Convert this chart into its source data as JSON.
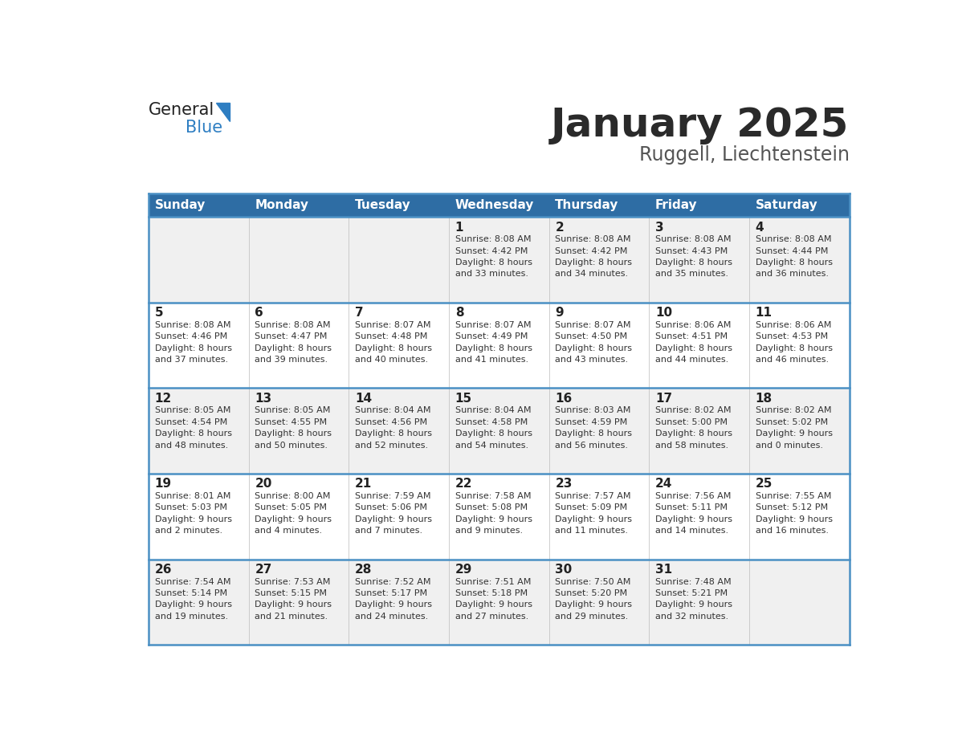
{
  "title": "January 2025",
  "subtitle": "Ruggell, Liechtenstein",
  "header_bg": "#2E6DA4",
  "header_text": "#FFFFFF",
  "cell_bg_light": "#F0F0F0",
  "cell_bg_white": "#FFFFFF",
  "border_color": "#2E7EC2",
  "row_line_color": "#4A90C4",
  "text_color": "#333333",
  "days_of_week": [
    "Sunday",
    "Monday",
    "Tuesday",
    "Wednesday",
    "Thursday",
    "Friday",
    "Saturday"
  ],
  "calendar_data": [
    [
      {
        "day": "",
        "info": ""
      },
      {
        "day": "",
        "info": ""
      },
      {
        "day": "",
        "info": ""
      },
      {
        "day": "1",
        "info": "Sunrise: 8:08 AM\nSunset: 4:42 PM\nDaylight: 8 hours\nand 33 minutes."
      },
      {
        "day": "2",
        "info": "Sunrise: 8:08 AM\nSunset: 4:42 PM\nDaylight: 8 hours\nand 34 minutes."
      },
      {
        "day": "3",
        "info": "Sunrise: 8:08 AM\nSunset: 4:43 PM\nDaylight: 8 hours\nand 35 minutes."
      },
      {
        "day": "4",
        "info": "Sunrise: 8:08 AM\nSunset: 4:44 PM\nDaylight: 8 hours\nand 36 minutes."
      }
    ],
    [
      {
        "day": "5",
        "info": "Sunrise: 8:08 AM\nSunset: 4:46 PM\nDaylight: 8 hours\nand 37 minutes."
      },
      {
        "day": "6",
        "info": "Sunrise: 8:08 AM\nSunset: 4:47 PM\nDaylight: 8 hours\nand 39 minutes."
      },
      {
        "day": "7",
        "info": "Sunrise: 8:07 AM\nSunset: 4:48 PM\nDaylight: 8 hours\nand 40 minutes."
      },
      {
        "day": "8",
        "info": "Sunrise: 8:07 AM\nSunset: 4:49 PM\nDaylight: 8 hours\nand 41 minutes."
      },
      {
        "day": "9",
        "info": "Sunrise: 8:07 AM\nSunset: 4:50 PM\nDaylight: 8 hours\nand 43 minutes."
      },
      {
        "day": "10",
        "info": "Sunrise: 8:06 AM\nSunset: 4:51 PM\nDaylight: 8 hours\nand 44 minutes."
      },
      {
        "day": "11",
        "info": "Sunrise: 8:06 AM\nSunset: 4:53 PM\nDaylight: 8 hours\nand 46 minutes."
      }
    ],
    [
      {
        "day": "12",
        "info": "Sunrise: 8:05 AM\nSunset: 4:54 PM\nDaylight: 8 hours\nand 48 minutes."
      },
      {
        "day": "13",
        "info": "Sunrise: 8:05 AM\nSunset: 4:55 PM\nDaylight: 8 hours\nand 50 minutes."
      },
      {
        "day": "14",
        "info": "Sunrise: 8:04 AM\nSunset: 4:56 PM\nDaylight: 8 hours\nand 52 minutes."
      },
      {
        "day": "15",
        "info": "Sunrise: 8:04 AM\nSunset: 4:58 PM\nDaylight: 8 hours\nand 54 minutes."
      },
      {
        "day": "16",
        "info": "Sunrise: 8:03 AM\nSunset: 4:59 PM\nDaylight: 8 hours\nand 56 minutes."
      },
      {
        "day": "17",
        "info": "Sunrise: 8:02 AM\nSunset: 5:00 PM\nDaylight: 8 hours\nand 58 minutes."
      },
      {
        "day": "18",
        "info": "Sunrise: 8:02 AM\nSunset: 5:02 PM\nDaylight: 9 hours\nand 0 minutes."
      }
    ],
    [
      {
        "day": "19",
        "info": "Sunrise: 8:01 AM\nSunset: 5:03 PM\nDaylight: 9 hours\nand 2 minutes."
      },
      {
        "day": "20",
        "info": "Sunrise: 8:00 AM\nSunset: 5:05 PM\nDaylight: 9 hours\nand 4 minutes."
      },
      {
        "day": "21",
        "info": "Sunrise: 7:59 AM\nSunset: 5:06 PM\nDaylight: 9 hours\nand 7 minutes."
      },
      {
        "day": "22",
        "info": "Sunrise: 7:58 AM\nSunset: 5:08 PM\nDaylight: 9 hours\nand 9 minutes."
      },
      {
        "day": "23",
        "info": "Sunrise: 7:57 AM\nSunset: 5:09 PM\nDaylight: 9 hours\nand 11 minutes."
      },
      {
        "day": "24",
        "info": "Sunrise: 7:56 AM\nSunset: 5:11 PM\nDaylight: 9 hours\nand 14 minutes."
      },
      {
        "day": "25",
        "info": "Sunrise: 7:55 AM\nSunset: 5:12 PM\nDaylight: 9 hours\nand 16 minutes."
      }
    ],
    [
      {
        "day": "26",
        "info": "Sunrise: 7:54 AM\nSunset: 5:14 PM\nDaylight: 9 hours\nand 19 minutes."
      },
      {
        "day": "27",
        "info": "Sunrise: 7:53 AM\nSunset: 5:15 PM\nDaylight: 9 hours\nand 21 minutes."
      },
      {
        "day": "28",
        "info": "Sunrise: 7:52 AM\nSunset: 5:17 PM\nDaylight: 9 hours\nand 24 minutes."
      },
      {
        "day": "29",
        "info": "Sunrise: 7:51 AM\nSunset: 5:18 PM\nDaylight: 9 hours\nand 27 minutes."
      },
      {
        "day": "30",
        "info": "Sunrise: 7:50 AM\nSunset: 5:20 PM\nDaylight: 9 hours\nand 29 minutes."
      },
      {
        "day": "31",
        "info": "Sunrise: 7:48 AM\nSunset: 5:21 PM\nDaylight: 9 hours\nand 32 minutes."
      },
      {
        "day": "",
        "info": ""
      }
    ]
  ],
  "logo_color_general": "#222222",
  "logo_color_blue": "#2E7EC2",
  "title_fontsize": 36,
  "subtitle_fontsize": 17,
  "day_header_fontsize": 11,
  "day_num_fontsize": 11,
  "info_fontsize": 8
}
